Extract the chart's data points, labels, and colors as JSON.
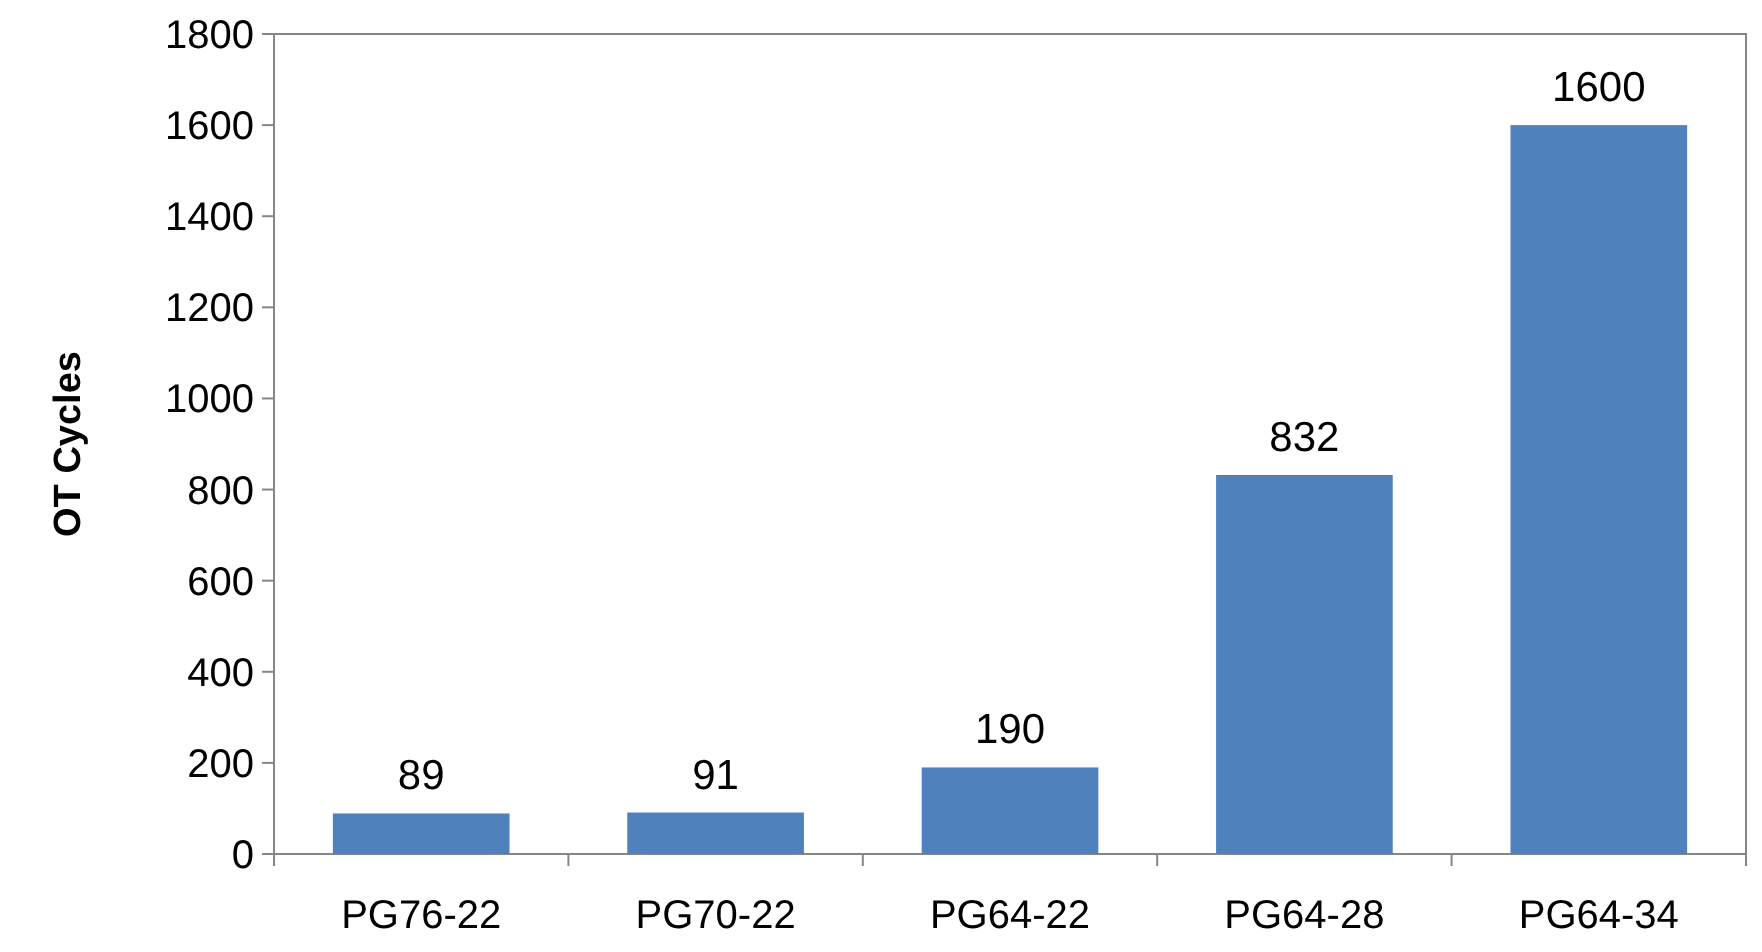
{
  "chart_data": {
    "type": "bar",
    "ylabel": "OT Cycles",
    "categories": [
      "PG76-22",
      "PG70-22",
      "PG64-22",
      "PG64-28",
      "PG64-34"
    ],
    "values": [
      89,
      91,
      190,
      832,
      1600
    ],
    "color": "#4f81bd",
    "ylim": [
      0,
      1800
    ],
    "yticks": [
      0,
      200,
      400,
      600,
      800,
      1000,
      1200,
      1400,
      1600,
      1800
    ],
    "grid": false,
    "data_labels": true
  }
}
